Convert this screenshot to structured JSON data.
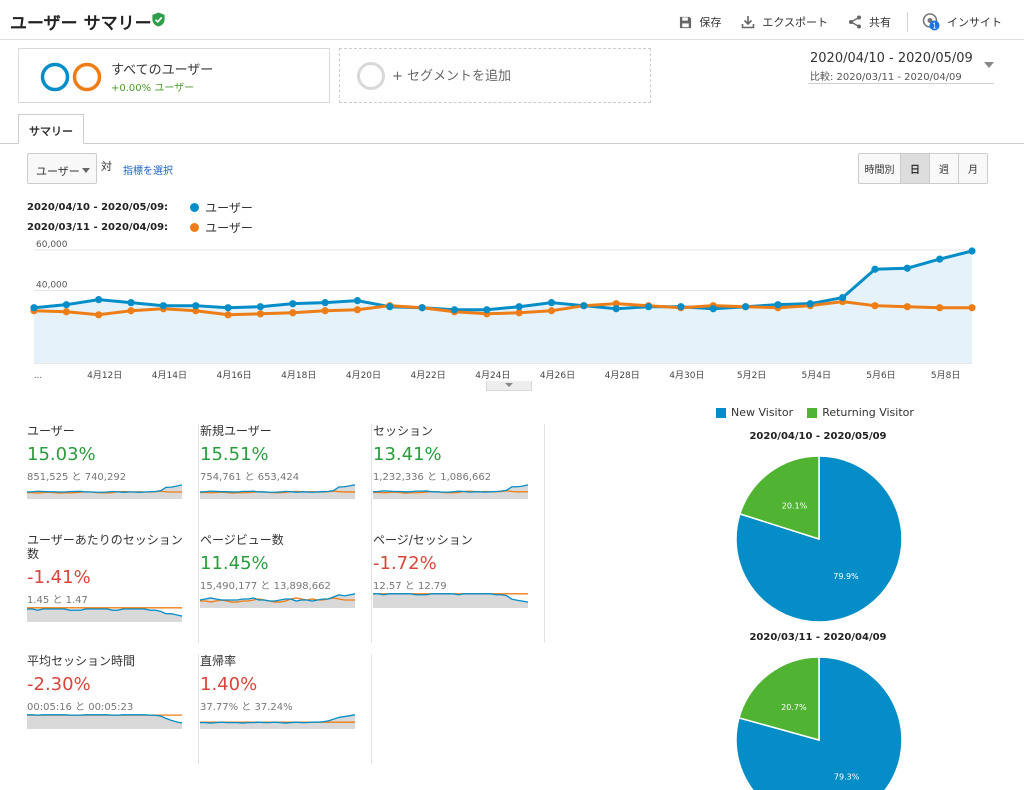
{
  "header": {
    "title": "ユーザー サマリー",
    "actions": {
      "save": "保存",
      "export": "エクスポート",
      "share": "共有",
      "insights": "インサイト",
      "insights_badge": "1"
    }
  },
  "segments": {
    "current": {
      "name": "すべてのユーザー",
      "percent": "+0.00% ユーザー"
    },
    "add_label": "+ セグメントを追加"
  },
  "date_range": {
    "main": "2020/04/10 - 2020/05/09",
    "compare": "比較: 2020/03/11 - 2020/04/09"
  },
  "tabs": {
    "summary": "サマリー"
  },
  "controls": {
    "metric_select": "ユーザー",
    "vs": "対",
    "pick_metric": "指標を選択",
    "granularity": [
      "時間別",
      "日",
      "週",
      "月"
    ],
    "granularity_active": "日"
  },
  "legend": [
    {
      "range": "2020/04/10 - 2020/05/09:",
      "series": "ユーザー",
      "color": "#058dc7"
    },
    {
      "range": "2020/03/11 - 2020/04/09:",
      "series": "ユーザー",
      "color": "#ed7e17"
    }
  ],
  "chart_data": [
    {
      "type": "line",
      "x": [
        "4月10日",
        "4月11日",
        "4月12日",
        "4月13日",
        "4月14日",
        "4月15日",
        "4月16日",
        "4月17日",
        "4月18日",
        "4月19日",
        "4月20日",
        "4月21日",
        "4月22日",
        "4月23日",
        "4月24日",
        "4月25日",
        "4月26日",
        "4月27日",
        "4月28日",
        "4月29日",
        "4月30日",
        "5月1日",
        "5月2日",
        "5月3日",
        "5月4日",
        "5月5日",
        "5月6日",
        "5月7日",
        "5月8日",
        "5月9日"
      ],
      "x_tick_labels": [
        "...",
        "4月12日",
        "4月14日",
        "4月16日",
        "4月18日",
        "4月20日",
        "4月22日",
        "4月24日",
        "4月26日",
        "4月28日",
        "4月30日",
        "5月2日",
        "5月4日",
        "5月6日",
        "5月8日"
      ],
      "y_ticks": [
        "20,000",
        "40,000",
        "60,000"
      ],
      "ylim": [
        0,
        70000
      ],
      "area_under_first_series": true,
      "series": [
        {
          "name": "ユーザー",
          "color": "#058dc7",
          "values": [
            31500,
            33000,
            35500,
            34000,
            32500,
            32500,
            31500,
            32000,
            33500,
            34000,
            35000,
            32000,
            31500,
            30500,
            30500,
            32000,
            34000,
            32500,
            31000,
            32000,
            32000,
            31000,
            32000,
            33000,
            33500,
            36500,
            50500,
            51000,
            55500,
            59500
          ]
        },
        {
          "name": "ユーザー",
          "color": "#ed7e17",
          "values": [
            30000,
            29500,
            28000,
            30000,
            31000,
            30000,
            28000,
            28500,
            29000,
            30000,
            30500,
            32500,
            31500,
            29500,
            28500,
            29000,
            30000,
            32500,
            33500,
            32500,
            31500,
            32500,
            32000,
            31500,
            32500,
            34500,
            32500,
            32000,
            31500,
            31500
          ]
        }
      ]
    },
    {
      "type": "pie",
      "title": "2020/04/10 - 2020/05/09",
      "categories": [
        "New Visitor",
        "Returning Visitor"
      ],
      "values": [
        79.9,
        20.1
      ],
      "labels": [
        "79.9%",
        "20.1%"
      ],
      "colors": [
        "#058dc7",
        "#50b432"
      ]
    },
    {
      "type": "pie",
      "title": "2020/03/11 - 2020/04/09",
      "categories": [
        "New Visitor",
        "Returning Visitor"
      ],
      "values": [
        79.3,
        20.7
      ],
      "labels": [
        "79.3%",
        "20.7%"
      ],
      "colors": [
        "#058dc7",
        "#50b432"
      ]
    }
  ],
  "pie_legend": [
    {
      "label": "New Visitor",
      "color": "#058dc7"
    },
    {
      "label": "Returning Visitor",
      "color": "#50b432"
    }
  ],
  "scorecards": [
    {
      "label": "ユーザー",
      "percent": "15.03%",
      "trend": "up",
      "values": "851,525 と 740,292",
      "spark_current": [
        32,
        33,
        35,
        34,
        33,
        33,
        32,
        32,
        34,
        34,
        35,
        32,
        32,
        31,
        31,
        32,
        34,
        33,
        31,
        32,
        32,
        31,
        32,
        33,
        34,
        37,
        50,
        51,
        55,
        60
      ],
      "spark_previous": [
        30,
        30,
        28,
        30,
        31,
        30,
        28,
        29,
        29,
        30,
        31,
        33,
        32,
        30,
        29,
        29,
        30,
        33,
        34,
        33,
        32,
        33,
        32,
        32,
        33,
        35,
        33,
        32,
        32,
        32
      ]
    },
    {
      "label": "新規ユーザー",
      "percent": "15.51%",
      "trend": "up",
      "values": "754,761 と 653,424",
      "spark_current": [
        30,
        31,
        33,
        32,
        31,
        31,
        30,
        30,
        32,
        32,
        33,
        30,
        30,
        29,
        29,
        30,
        32,
        31,
        29,
        30,
        30,
        29,
        30,
        31,
        32,
        35,
        48,
        49,
        52,
        56
      ],
      "spark_previous": [
        28,
        28,
        27,
        28,
        29,
        28,
        26,
        27,
        27,
        28,
        29,
        31,
        30,
        28,
        27,
        27,
        28,
        31,
        32,
        31,
        30,
        31,
        30,
        30,
        31,
        33,
        31,
        30,
        30,
        30
      ]
    },
    {
      "label": "セッション",
      "percent": "13.41%",
      "trend": "up",
      "values": "1,232,336 と 1,086,662",
      "spark_current": [
        40,
        41,
        43,
        42,
        41,
        41,
        40,
        40,
        42,
        42,
        43,
        40,
        40,
        39,
        39,
        40,
        42,
        41,
        39,
        40,
        40,
        39,
        40,
        41,
        42,
        45,
        56,
        56,
        58,
        62
      ],
      "spark_previous": [
        38,
        38,
        37,
        38,
        39,
        38,
        36,
        37,
        37,
        38,
        39,
        41,
        40,
        38,
        37,
        37,
        38,
        41,
        42,
        41,
        40,
        41,
        40,
        40,
        41,
        43,
        41,
        40,
        40,
        40
      ]
    },
    {
      "label": "ユーザーあたりのセッション数",
      "percent": "-1.41%",
      "trend": "down",
      "values": "1.45 と 1.47",
      "spark_current": [
        1.46,
        1.46,
        1.45,
        1.46,
        1.46,
        1.46,
        1.46,
        1.46,
        1.45,
        1.45,
        1.45,
        1.46,
        1.46,
        1.46,
        1.46,
        1.46,
        1.45,
        1.45,
        1.46,
        1.46,
        1.46,
        1.46,
        1.46,
        1.45,
        1.45,
        1.44,
        1.42,
        1.42,
        1.41,
        1.4
      ],
      "spark_previous": [
        1.47,
        1.47,
        1.47,
        1.47,
        1.47,
        1.47,
        1.47,
        1.47,
        1.47,
        1.47,
        1.47,
        1.47,
        1.47,
        1.47,
        1.47,
        1.47,
        1.47,
        1.47,
        1.47,
        1.47,
        1.47,
        1.47,
        1.47,
        1.47,
        1.47,
        1.47,
        1.47,
        1.47,
        1.47,
        1.47
      ]
    },
    {
      "label": "ページビュー数",
      "percent": "11.45%",
      "trend": "up",
      "values": "15,490,177 と 13,898,662",
      "spark_current": [
        48,
        49,
        50,
        49,
        48,
        48,
        48,
        48,
        49,
        49,
        50,
        48,
        48,
        47,
        47,
        48,
        49,
        49,
        47,
        48,
        48,
        47,
        48,
        49,
        49,
        51,
        53,
        52,
        53,
        54
      ],
      "spark_previous": [
        47,
        47,
        46,
        47,
        48,
        47,
        46,
        46,
        47,
        47,
        48,
        49,
        48,
        47,
        46,
        46,
        47,
        49,
        50,
        49,
        48,
        49,
        48,
        48,
        49,
        50,
        49,
        48,
        48,
        48
      ]
    },
    {
      "label": "ページ/セッション",
      "percent": "-1.72%",
      "trend": "down",
      "values": "12.57 と 12.79",
      "spark_current": [
        12.8,
        12.8,
        12.7,
        12.8,
        12.8,
        12.8,
        12.8,
        12.8,
        12.7,
        12.7,
        12.7,
        12.8,
        12.8,
        12.8,
        12.8,
        12.8,
        12.7,
        12.8,
        12.8,
        12.8,
        12.8,
        12.8,
        12.8,
        12.7,
        12.7,
        12.6,
        12.2,
        12.1,
        12.0,
        11.9
      ],
      "spark_previous": [
        12.8,
        12.8,
        12.8,
        12.8,
        12.8,
        12.8,
        12.8,
        12.8,
        12.8,
        12.8,
        12.8,
        12.8,
        12.8,
        12.8,
        12.8,
        12.8,
        12.8,
        12.8,
        12.8,
        12.8,
        12.8,
        12.8,
        12.8,
        12.8,
        12.8,
        12.8,
        12.8,
        12.8,
        12.8,
        12.8
      ]
    },
    {
      "label": "平均セッション時間",
      "percent": "-2.30%",
      "trend": "down",
      "values": "00:05:16 と 00:05:23",
      "spark_current": [
        324,
        324,
        323,
        324,
        324,
        324,
        324,
        324,
        323,
        323,
        323,
        324,
        324,
        324,
        324,
        324,
        323,
        323,
        324,
        324,
        324,
        324,
        324,
        323,
        322,
        320,
        312,
        305,
        300,
        296
      ],
      "spark_previous": [
        323,
        323,
        323,
        323,
        323,
        323,
        323,
        323,
        323,
        323,
        323,
        323,
        323,
        323,
        323,
        323,
        323,
        323,
        323,
        323,
        323,
        323,
        323,
        323,
        323,
        323,
        323,
        323,
        323,
        323
      ]
    },
    {
      "label": "直帰率",
      "percent": "1.40%",
      "trend": "down",
      "values": "37.77% と 37.24%",
      "spark_current": [
        37.2,
        37.2,
        37.1,
        37.2,
        37.3,
        37.2,
        37.2,
        37.2,
        37.1,
        37.2,
        37.2,
        37.3,
        37.2,
        37.2,
        37.3,
        37.2,
        37.1,
        37.2,
        37.3,
        37.2,
        37.2,
        37.3,
        37.3,
        37.4,
        37.6,
        38.0,
        38.4,
        38.6,
        38.8,
        39.0
      ],
      "spark_previous": [
        37.3,
        37.3,
        37.3,
        37.3,
        37.3,
        37.3,
        37.3,
        37.3,
        37.3,
        37.3,
        37.3,
        37.3,
        37.3,
        37.3,
        37.3,
        37.3,
        37.3,
        37.3,
        37.3,
        37.3,
        37.3,
        37.3,
        37.3,
        37.3,
        37.3,
        37.3,
        37.3,
        37.3,
        37.3,
        37.3
      ]
    }
  ]
}
